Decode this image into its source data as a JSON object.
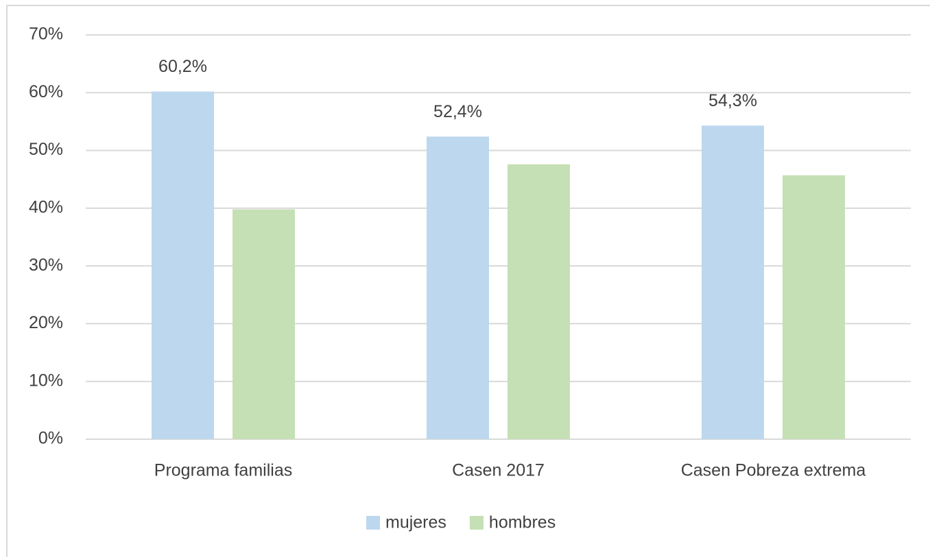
{
  "chart_data": {
    "type": "bar",
    "categories": [
      "Programa familias",
      "Casen 2017",
      "Casen Pobreza extrema"
    ],
    "series": [
      {
        "name": "mujeres",
        "color": "#bdd7ee",
        "values": [
          60.2,
          52.4,
          54.3
        ],
        "value_labels": [
          "60,2%",
          "52,4%",
          "54,3%"
        ]
      },
      {
        "name": "hombres",
        "color": "#c5e0b4",
        "values": [
          39.8,
          47.6,
          45.7
        ]
      }
    ],
    "ylim": [
      0,
      70
    ],
    "yticks": [
      {
        "value": 0,
        "label": "0%"
      },
      {
        "value": 10,
        "label": "10%"
      },
      {
        "value": 20,
        "label": "20%"
      },
      {
        "value": 30,
        "label": "30%"
      },
      {
        "value": 40,
        "label": "40%"
      },
      {
        "value": 50,
        "label": "50%"
      },
      {
        "value": 60,
        "label": "60%"
      },
      {
        "value": 70,
        "label": "70%"
      }
    ],
    "grid": true,
    "legend": "bottom"
  }
}
